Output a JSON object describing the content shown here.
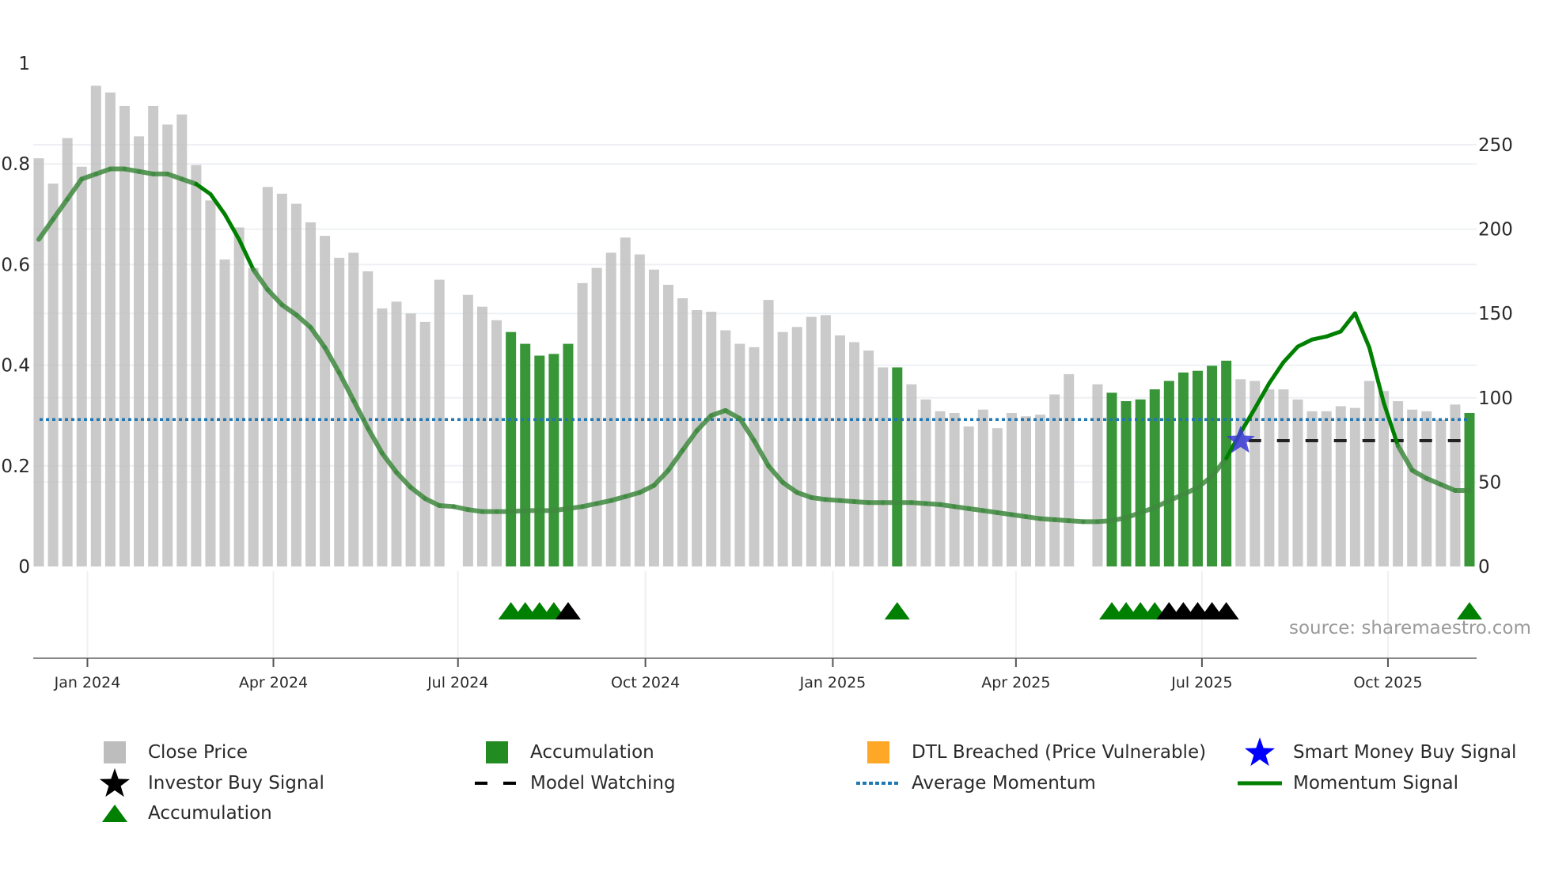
{
  "chart_data": {
    "type": "bar",
    "left_axis": {
      "ticks": [
        "0",
        "0.2",
        "0.4",
        "0.6",
        "0.8",
        "1"
      ],
      "values": [
        0,
        0.2,
        0.4,
        0.6,
        0.8,
        1
      ],
      "range": [
        0,
        1
      ]
    },
    "right_axis": {
      "ticks": [
        "0",
        "50",
        "100",
        "150",
        "200",
        "250"
      ],
      "values": [
        0,
        50,
        100,
        150,
        200,
        250
      ],
      "range": [
        0,
        298
      ]
    },
    "x_ticks": [
      {
        "label": "Jan 2024",
        "index": 3.4
      },
      {
        "label": "Apr 2024",
        "index": 16.4
      },
      {
        "label": "Jul 2024",
        "index": 29.3
      },
      {
        "label": "Oct 2024",
        "index": 42.4
      },
      {
        "label": "Jan 2025",
        "index": 55.5
      },
      {
        "label": "Apr 2025",
        "index": 68.3
      },
      {
        "label": "Jul 2025",
        "index": 81.3
      },
      {
        "label": "Oct 2025",
        "index": 94.3
      }
    ],
    "close_price": [
      242,
      227,
      254,
      237,
      285,
      281,
      273,
      255,
      273,
      262,
      268,
      238,
      217,
      182,
      201,
      177,
      225,
      221,
      215,
      204,
      196,
      183,
      186,
      175,
      153,
      157,
      150,
      145,
      170,
      null,
      161,
      154,
      146,
      139,
      132,
      125,
      126,
      132,
      168,
      177,
      186,
      195,
      185,
      176,
      167,
      159,
      152,
      151,
      140,
      132,
      130,
      158,
      139,
      142,
      148,
      149,
      137,
      133,
      128,
      118,
      118,
      108,
      99,
      92,
      91,
      83,
      93,
      82,
      91,
      89,
      90,
      102,
      114,
      null,
      108,
      103,
      98,
      99,
      105,
      110,
      115,
      116,
      119,
      122,
      111,
      110,
      105,
      105,
      99,
      92,
      92,
      95,
      94,
      110,
      104,
      98,
      93,
      92,
      87,
      96,
      91
    ],
    "accumulation_bars": [
      33,
      34,
      35,
      36,
      37,
      60,
      75,
      76,
      77,
      78,
      79,
      80,
      81,
      82,
      83,
      100
    ],
    "momentum": [
      0.65,
      0.69,
      0.73,
      0.77,
      0.78,
      0.79,
      0.79,
      0.785,
      0.78,
      0.78,
      0.77,
      0.76,
      0.74,
      0.7,
      0.65,
      0.59,
      0.55,
      0.52,
      0.5,
      0.475,
      0.435,
      0.385,
      0.33,
      0.275,
      0.225,
      0.187,
      0.157,
      0.135,
      0.121,
      0.119,
      0.113,
      0.109,
      0.109,
      0.109,
      0.111,
      0.111,
      0.111,
      0.115,
      0.119,
      0.125,
      0.131,
      0.139,
      0.147,
      0.161,
      0.191,
      0.231,
      0.27,
      0.3,
      0.31,
      0.294,
      0.25,
      0.2,
      0.167,
      0.147,
      0.137,
      0.133,
      0.131,
      0.129,
      0.127,
      0.127,
      0.127,
      0.127,
      0.125,
      0.123,
      0.119,
      0.115,
      0.111,
      0.107,
      0.103,
      0.099,
      0.095,
      0.093,
      0.091,
      0.089,
      0.089,
      0.091,
      0.097,
      0.107,
      0.117,
      0.131,
      0.143,
      0.157,
      0.179,
      0.215,
      0.266,
      0.314,
      0.364,
      0.406,
      0.437,
      0.451,
      0.457,
      0.467,
      0.503,
      0.435,
      0.326,
      0.24,
      0.191,
      0.175,
      0.163,
      0.151,
      0.151
    ],
    "average_momentum": 0.292,
    "model_watching": {
      "value": 0.25,
      "from_index": 84,
      "to_index": 100
    },
    "smart_money_buy": [
      {
        "index": 84,
        "value": 0.25
      }
    ],
    "accumulation_signals": [
      33,
      34,
      35,
      36,
      60,
      75,
      76,
      77,
      78,
      100
    ],
    "investor_buy_signals": [
      37,
      79,
      80,
      81,
      82,
      83
    ],
    "source": "source: sharemaestro.com",
    "legend": [
      {
        "label": "Close Price",
        "color": "#bdbdbd",
        "shape": "square"
      },
      {
        "label": "Accumulation",
        "color": "#228b22",
        "shape": "square"
      },
      {
        "label": "DTL Breached (Price Vulnerable)",
        "color": "#ffa726",
        "shape": "square"
      },
      {
        "label": "Smart Money Buy Signal",
        "color": "#0000ff",
        "shape": "star"
      },
      {
        "label": "Investor Buy Signal",
        "color": "#000000",
        "shape": "star"
      },
      {
        "label": "Model Watching",
        "color": "#000000",
        "shape": "dash"
      },
      {
        "label": "Average Momentum",
        "color": "#1f77b4",
        "shape": "dot"
      },
      {
        "label": "Momentum Signal",
        "color": "#008000",
        "shape": "line"
      },
      {
        "label": "Accumulation",
        "color": "#008000",
        "shape": "triangle"
      }
    ],
    "legend_placement": "bottom"
  }
}
